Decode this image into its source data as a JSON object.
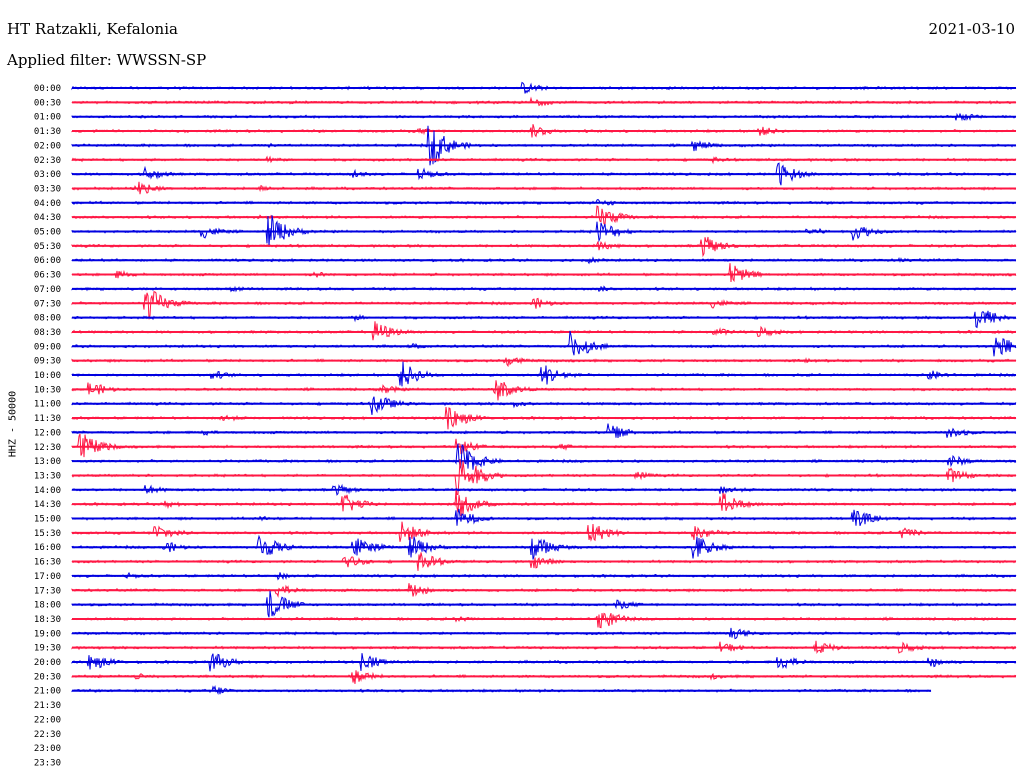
{
  "header": {
    "station": "HT Ratzakli, Kefalonia",
    "date": "2021-03-10",
    "filter": "Applied filter: WWSSN-SP"
  },
  "chart_data": {
    "type": "line",
    "title": "HT Ratzakli, Kefalonia",
    "subtitle": "Applied filter: WWSSN-SP",
    "ylabel": "HHZ - 50000",
    "xlabel": "",
    "grid": false,
    "colors": [
      "#0000e0",
      "#ff1744"
    ],
    "rows": [
      {
        "label": "00:00",
        "fraction": 1,
        "events": [
          [
            0.48,
            6
          ],
          [
            0.04,
            1
          ]
        ]
      },
      {
        "label": "00:30",
        "fraction": 1,
        "events": [
          [
            0.49,
            5
          ]
        ]
      },
      {
        "label": "01:00",
        "fraction": 1,
        "events": [
          [
            0.94,
            5
          ],
          [
            0.38,
            1
          ]
        ]
      },
      {
        "label": "01:30",
        "fraction": 1,
        "events": [
          [
            0.49,
            7
          ],
          [
            0.73,
            5
          ],
          [
            0.37,
            3
          ]
        ]
      },
      {
        "label": "02:00",
        "fraction": 1,
        "events": [
          [
            0.38,
            22
          ],
          [
            0.66,
            6
          ],
          [
            0.21,
            2
          ]
        ]
      },
      {
        "label": "02:30",
        "fraction": 1,
        "events": [
          [
            0.21,
            3
          ],
          [
            0.68,
            3
          ]
        ]
      },
      {
        "label": "03:00",
        "fraction": 1,
        "events": [
          [
            0.75,
            12
          ],
          [
            0.08,
            7
          ],
          [
            0.3,
            4
          ],
          [
            0.37,
            6
          ]
        ]
      },
      {
        "label": "03:30",
        "fraction": 1,
        "events": [
          [
            0.07,
            8
          ],
          [
            0.2,
            3
          ]
        ]
      },
      {
        "label": "04:00",
        "fraction": 1,
        "events": [
          [
            0.56,
            4
          ]
        ]
      },
      {
        "label": "04:30",
        "fraction": 1,
        "events": [
          [
            0.56,
            12
          ],
          [
            0.2,
            2
          ]
        ]
      },
      {
        "label": "05:00",
        "fraction": 1,
        "events": [
          [
            0.21,
            18
          ],
          [
            0.14,
            7
          ],
          [
            0.56,
            12
          ],
          [
            0.83,
            9
          ],
          [
            0.78,
            5
          ]
        ]
      },
      {
        "label": "05:30",
        "fraction": 1,
        "events": [
          [
            0.67,
            11
          ],
          [
            0.56,
            5
          ]
        ]
      },
      {
        "label": "06:00",
        "fraction": 1,
        "events": [
          [
            0.55,
            3
          ],
          [
            0.88,
            2
          ]
        ]
      },
      {
        "label": "06:30",
        "fraction": 1,
        "events": [
          [
            0.7,
            12
          ],
          [
            0.05,
            4
          ],
          [
            0.26,
            3
          ]
        ]
      },
      {
        "label": "07:00",
        "fraction": 1,
        "events": [
          [
            0.17,
            3
          ],
          [
            0.56,
            3
          ]
        ]
      },
      {
        "label": "07:30",
        "fraction": 1,
        "events": [
          [
            0.08,
            18
          ],
          [
            0.49,
            6
          ],
          [
            0.68,
            5
          ]
        ]
      },
      {
        "label": "08:00",
        "fraction": 1,
        "events": [
          [
            0.96,
            14
          ],
          [
            0.3,
            3
          ]
        ]
      },
      {
        "label": "08:30",
        "fraction": 1,
        "events": [
          [
            0.32,
            12
          ],
          [
            0.68,
            5
          ],
          [
            0.73,
            6
          ]
        ]
      },
      {
        "label": "09:00",
        "fraction": 1,
        "events": [
          [
            0.53,
            16
          ],
          [
            0.98,
            14
          ],
          [
            0.36,
            3
          ]
        ]
      },
      {
        "label": "09:30",
        "fraction": 1,
        "events": [
          [
            0.46,
            6
          ],
          [
            0.78,
            2
          ]
        ]
      },
      {
        "label": "10:00",
        "fraction": 1,
        "events": [
          [
            0.35,
            14
          ],
          [
            0.5,
            12
          ],
          [
            0.15,
            5
          ],
          [
            0.91,
            5
          ]
        ]
      },
      {
        "label": "10:30",
        "fraction": 1,
        "events": [
          [
            0.02,
            8
          ],
          [
            0.45,
            12
          ],
          [
            0.33,
            5
          ]
        ]
      },
      {
        "label": "11:00",
        "fraction": 1,
        "events": [
          [
            0.32,
            12
          ],
          [
            0.47,
            4
          ]
        ]
      },
      {
        "label": "11:30",
        "fraction": 1,
        "events": [
          [
            0.4,
            14
          ],
          [
            0.16,
            4
          ]
        ]
      },
      {
        "label": "12:00",
        "fraction": 1,
        "events": [
          [
            0.57,
            9
          ],
          [
            0.93,
            7
          ],
          [
            0.14,
            3
          ]
        ]
      },
      {
        "label": "12:30",
        "fraction": 1,
        "events": [
          [
            0.01,
            16
          ],
          [
            0.41,
            8
          ],
          [
            0.52,
            3
          ]
        ]
      },
      {
        "label": "13:00",
        "fraction": 1,
        "events": [
          [
            0.41,
            20
          ],
          [
            0.93,
            7
          ]
        ]
      },
      {
        "label": "13:30",
        "fraction": 1,
        "events": [
          [
            0.41,
            26
          ],
          [
            0.93,
            8
          ],
          [
            0.6,
            4
          ]
        ]
      },
      {
        "label": "14:00",
        "fraction": 1,
        "events": [
          [
            0.28,
            6
          ],
          [
            0.08,
            5
          ],
          [
            0.69,
            5
          ]
        ]
      },
      {
        "label": "14:30",
        "fraction": 1,
        "events": [
          [
            0.29,
            10
          ],
          [
            0.41,
            14
          ],
          [
            0.69,
            12
          ],
          [
            0.1,
            4
          ]
        ]
      },
      {
        "label": "15:00",
        "fraction": 1,
        "events": [
          [
            0.83,
            10
          ],
          [
            0.41,
            10
          ],
          [
            0.2,
            3
          ]
        ]
      },
      {
        "label": "15:30",
        "fraction": 1,
        "events": [
          [
            0.09,
            10
          ],
          [
            0.35,
            12
          ],
          [
            0.55,
            12
          ],
          [
            0.66,
            10
          ],
          [
            0.88,
            6
          ]
        ]
      },
      {
        "label": "16:00",
        "fraction": 1,
        "events": [
          [
            0.2,
            14
          ],
          [
            0.3,
            12
          ],
          [
            0.36,
            12
          ],
          [
            0.49,
            14
          ],
          [
            0.66,
            14
          ],
          [
            0.1,
            6
          ]
        ]
      },
      {
        "label": "16:30",
        "fraction": 1,
        "events": [
          [
            0.29,
            8
          ],
          [
            0.37,
            10
          ],
          [
            0.49,
            7
          ]
        ]
      },
      {
        "label": "17:00",
        "fraction": 1,
        "events": [
          [
            0.22,
            4
          ],
          [
            0.06,
            3
          ]
        ]
      },
      {
        "label": "17:30",
        "fraction": 1,
        "events": [
          [
            0.36,
            8
          ],
          [
            0.22,
            6
          ]
        ]
      },
      {
        "label": "18:00",
        "fraction": 1,
        "events": [
          [
            0.21,
            16
          ],
          [
            0.58,
            5
          ]
        ]
      },
      {
        "label": "18:30",
        "fraction": 1,
        "events": [
          [
            0.56,
            12
          ],
          [
            0.41,
            3
          ]
        ]
      },
      {
        "label": "19:00",
        "fraction": 1,
        "events": [
          [
            0.7,
            6
          ]
        ]
      },
      {
        "label": "19:30",
        "fraction": 1,
        "events": [
          [
            0.69,
            6
          ],
          [
            0.79,
            7
          ],
          [
            0.88,
            6
          ]
        ]
      },
      {
        "label": "20:00",
        "fraction": 1,
        "events": [
          [
            0.02,
            10
          ],
          [
            0.15,
            10
          ],
          [
            0.31,
            10
          ],
          [
            0.75,
            8
          ],
          [
            0.91,
            6
          ]
        ]
      },
      {
        "label": "20:30",
        "fraction": 1,
        "events": [
          [
            0.3,
            8
          ],
          [
            0.07,
            3
          ],
          [
            0.68,
            3
          ]
        ]
      },
      {
        "label": "21:00",
        "fraction": 0.91,
        "events": [
          [
            0.15,
            6
          ]
        ]
      },
      {
        "label": "21:30",
        "fraction": 0,
        "events": []
      },
      {
        "label": "22:00",
        "fraction": 0,
        "events": []
      },
      {
        "label": "22:30",
        "fraction": 0,
        "events": []
      },
      {
        "label": "23:00",
        "fraction": 0,
        "events": []
      },
      {
        "label": "23:30",
        "fraction": 0,
        "events": []
      }
    ]
  }
}
